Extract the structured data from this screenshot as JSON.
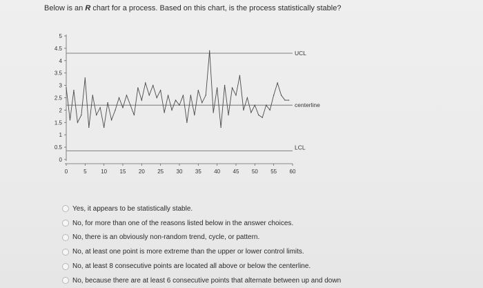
{
  "question": {
    "prefix": "Below is an ",
    "emphasis": "R",
    "suffix": " chart for a process. Based on this chart, is the process statistically stable?"
  },
  "chart_data": {
    "type": "line",
    "title": "",
    "xlabel": "",
    "ylabel": "",
    "xlim": [
      0,
      60
    ],
    "ylim": [
      0,
      5
    ],
    "x_ticks": [
      "0",
      "5",
      "10",
      "15",
      "20",
      "25",
      "30",
      "35",
      "40",
      "45",
      "50",
      "55",
      "60"
    ],
    "y_ticks": [
      "0",
      "0.5",
      "1",
      "1.5",
      "2",
      "2.5",
      "3",
      "3.5",
      "4",
      "4.5",
      "5"
    ],
    "control_lines": [
      {
        "name": "UCL",
        "value": 4.3
      },
      {
        "name": "centerline",
        "value": 2.2
      },
      {
        "name": "LCL",
        "value": 0.35
      }
    ],
    "series": [
      {
        "values": [
          2.9,
          1.6,
          2.8,
          1.5,
          1.8,
          3.3,
          1.3,
          2.6,
          1.8,
          2.1,
          1.3,
          2.3,
          1.6,
          2.0,
          2.5,
          2.1,
          2.6,
          2.2,
          1.8,
          2.9,
          2.4,
          3.1,
          2.6,
          3.0,
          2.5,
          2.8,
          1.9,
          2.6,
          2.0,
          2.4,
          2.2,
          2.6,
          1.5,
          2.6,
          1.8,
          2.8,
          2.3,
          2.6,
          4.4,
          1.9,
          2.9,
          1.3,
          3.0,
          1.8,
          2.9,
          2.6,
          3.4,
          2.0,
          2.5,
          1.9,
          2.2,
          1.8,
          1.7,
          2.2,
          2.0,
          2.6,
          3.1,
          2.6,
          2.4,
          2.4
        ]
      }
    ]
  },
  "choices": [
    {
      "label": "Yes, it appears to be statistically stable."
    },
    {
      "label": "No, for more than one of the reasons listed below in the answer choices."
    },
    {
      "label": "No, there is an obviously non-random trend, cycle, or pattern."
    },
    {
      "label": "No, at least one point is more extreme than the upper or lower control limits."
    },
    {
      "label": "No, at least 8 consecutive points are located all above or below the centerline."
    },
    {
      "label": "No, because there are at least 6 consecutive points that alternate between up and down"
    }
  ]
}
